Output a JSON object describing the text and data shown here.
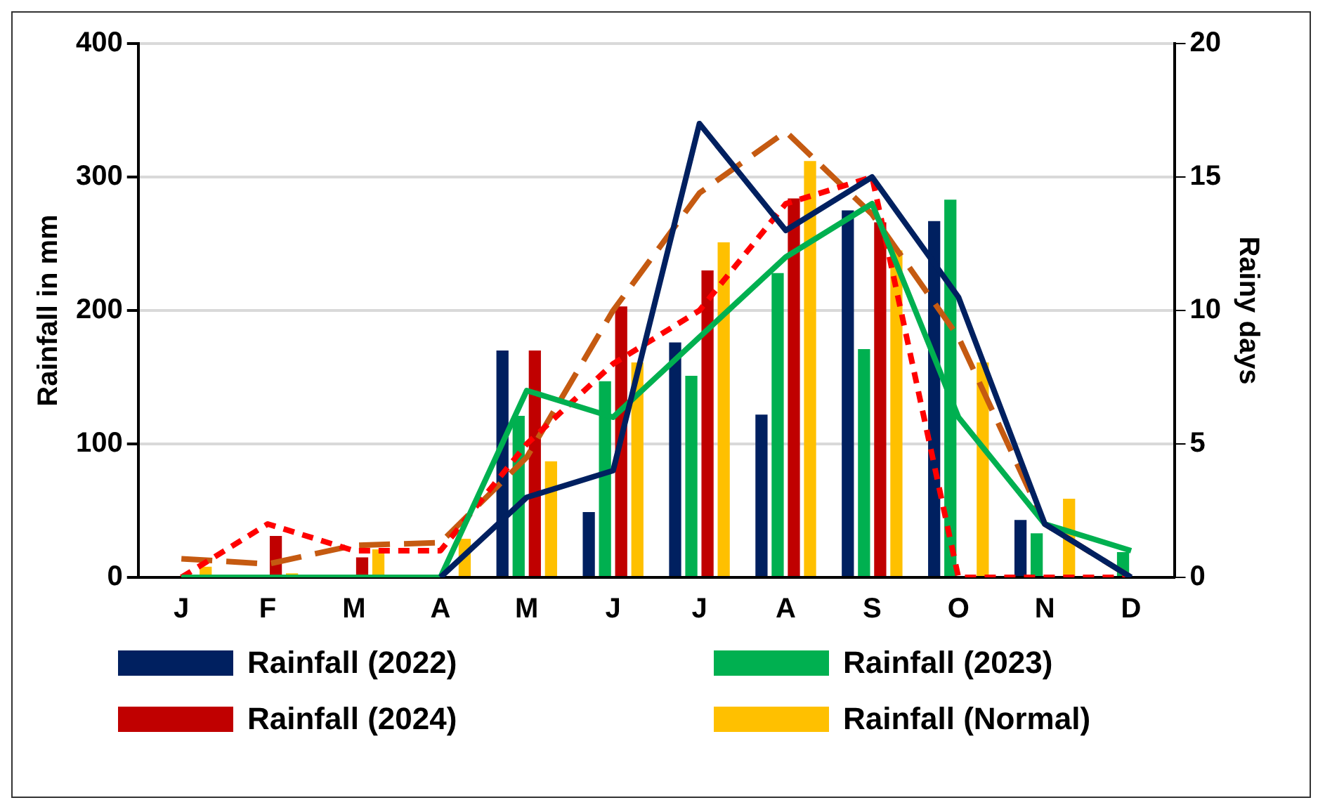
{
  "chart_data": {
    "type": "bar",
    "categories": [
      "J",
      "F",
      "M",
      "A",
      "M",
      "J",
      "J",
      "A",
      "S",
      "O",
      "N",
      "D"
    ],
    "ylabel": "Rainfall in mm",
    "y2label": "Rainy days",
    "ylim": [
      0,
      400
    ],
    "yticks": [
      0,
      100,
      200,
      300,
      400
    ],
    "y2lim": [
      0,
      20
    ],
    "y2ticks": [
      0,
      5,
      10,
      15,
      20
    ],
    "grid": "y",
    "legend": "bottom",
    "series": [
      {
        "name": "Rainfall (2022)",
        "color": "#002060",
        "values": [
          0,
          0,
          0,
          0,
          170,
          49,
          176,
          122,
          275,
          267,
          43,
          0
        ]
      },
      {
        "name": "Rainfall (2023)",
        "color": "#00b050",
        "values": [
          0,
          0,
          0,
          0,
          121,
          147,
          151,
          228,
          171,
          283,
          33,
          19
        ]
      },
      {
        "name": "Rainfall (2024)",
        "color": "#c00000",
        "values": [
          0,
          31,
          15,
          0,
          170,
          203,
          230,
          284,
          266,
          0,
          0,
          0
        ]
      },
      {
        "name": "Rainfall (Normal)",
        "color": "#ffc000",
        "values": [
          8,
          3,
          21,
          29,
          87,
          161,
          251,
          312,
          245,
          161,
          59,
          0
        ]
      },
      {
        "type": "line",
        "axis": "y2",
        "color": "#002060",
        "line_style": "solid",
        "values": [
          null,
          null,
          null,
          0,
          3,
          4,
          17,
          13,
          15,
          10.5,
          2,
          0
        ]
      },
      {
        "type": "line",
        "axis": "y2",
        "color": "#00b050",
        "line_style": "solid",
        "values": [
          0,
          0,
          0,
          0,
          7,
          6,
          9,
          12,
          14,
          6,
          2,
          1
        ]
      },
      {
        "type": "line",
        "axis": "y2",
        "color": "#ff0000",
        "line_style": "dotted",
        "values": [
          0,
          2,
          1,
          1,
          5,
          8,
          10,
          14,
          15,
          0,
          0,
          0
        ]
      },
      {
        "type": "line",
        "axis": "y2",
        "color": "#c55a11",
        "line_style": "dashed",
        "values": [
          0.7,
          0.5,
          1.2,
          1.3,
          4.5,
          10,
          14.4,
          16.7,
          13.6,
          9,
          2,
          0
        ]
      }
    ]
  }
}
